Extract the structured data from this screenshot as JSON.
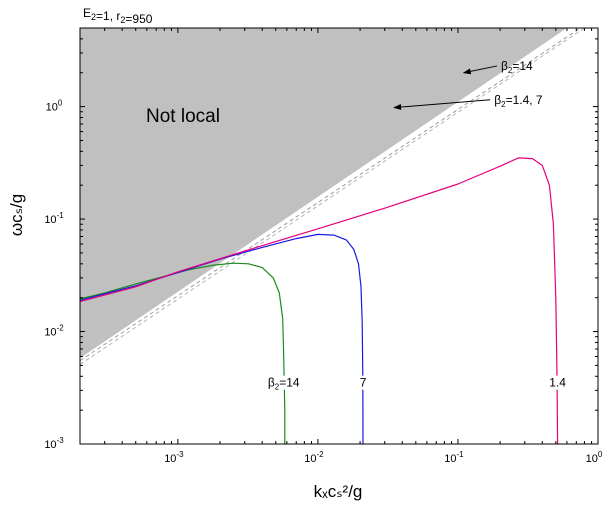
{
  "chart_data": {
    "type": "line",
    "title": "E₂=1, r₂=950",
    "xlabel": "kₓcₛ²/g",
    "ylabel": "ωcₛ/g",
    "xscale": "log",
    "yscale": "log",
    "xlim": [
      0.0002,
      1
    ],
    "ylim": [
      0.001,
      5
    ],
    "x_ticks": [
      {
        "value": 0.001,
        "base": "10",
        "exp": "-3"
      },
      {
        "value": 0.01,
        "base": "10",
        "exp": "-2"
      },
      {
        "value": 0.1,
        "base": "10",
        "exp": "-1"
      },
      {
        "value": 1,
        "base": "10",
        "exp": "0"
      }
    ],
    "y_ticks": [
      {
        "value": 0.001,
        "base": "10",
        "exp": "-3"
      },
      {
        "value": 0.01,
        "base": "10",
        "exp": "-2"
      },
      {
        "value": 0.1,
        "base": "10",
        "exp": "-1"
      },
      {
        "value": 1,
        "base": "10",
        "exp": "0"
      }
    ],
    "shaded_region": {
      "label": "Not local",
      "color": "#c0c0c0",
      "boundary": [
        [
          0.0002,
          0.0058
        ],
        [
          0.6,
          5
        ]
      ]
    },
    "dashed_lines": [
      {
        "name": "β₂=14",
        "color": "#9a9a9a",
        "points": [
          [
            0.0002,
            0.0055
          ],
          [
            0.75,
            5
          ]
        ]
      },
      {
        "name": "β₂=1.4, 7",
        "color": "#b5b5b5",
        "points": [
          [
            0.0002,
            0.0051
          ],
          [
            0.8,
            5
          ]
        ]
      }
    ],
    "series": [
      {
        "name": "β₂=14",
        "color": "#1a8a1a",
        "x": [
          0.0002,
          0.0003,
          0.0005,
          0.0008,
          0.0012,
          0.0018,
          0.0025,
          0.0032,
          0.004,
          0.0048,
          0.0053,
          0.0056,
          0.0057,
          0.0058,
          0.0058
        ],
        "y": [
          0.0195,
          0.022,
          0.0265,
          0.031,
          0.0355,
          0.039,
          0.0405,
          0.04,
          0.037,
          0.03,
          0.022,
          0.013,
          0.006,
          0.002,
          0.001
        ]
      },
      {
        "name": "7",
        "color": "#1a1adc",
        "x": [
          0.0002,
          0.0005,
          0.001,
          0.002,
          0.004,
          0.007,
          0.01,
          0.013,
          0.016,
          0.018,
          0.0195,
          0.0203,
          0.0207,
          0.0209,
          0.021
        ],
        "y": [
          0.019,
          0.0255,
          0.0335,
          0.044,
          0.056,
          0.067,
          0.073,
          0.072,
          0.065,
          0.054,
          0.04,
          0.025,
          0.012,
          0.004,
          0.001
        ]
      },
      {
        "name": "1.4",
        "color": "#e6007e",
        "x": [
          0.0002,
          0.0005,
          0.001,
          0.003,
          0.01,
          0.03,
          0.1,
          0.2,
          0.27,
          0.34,
          0.4,
          0.45,
          0.48,
          0.5,
          0.51,
          0.515
        ],
        "y": [
          0.0185,
          0.025,
          0.034,
          0.052,
          0.082,
          0.125,
          0.205,
          0.295,
          0.35,
          0.345,
          0.3,
          0.2,
          0.09,
          0.02,
          0.004,
          0.001
        ]
      }
    ],
    "annotations": [
      {
        "base": "β",
        "sub": "2",
        "rest": "=14",
        "x": 0.19,
        "y": 2.3,
        "arrow_to": [
          0.11,
          2.0
        ]
      },
      {
        "base": "β",
        "sub": "2",
        "rest": "=1.4, 7",
        "x": 0.17,
        "y": 1.15,
        "arrow_to": [
          0.035,
          0.98
        ]
      }
    ],
    "curve_labels": [
      {
        "base": "β",
        "sub": "2",
        "rest": "=14",
        "x": 0.0057,
        "y": 0.0033
      },
      {
        "base": "",
        "sub": "",
        "rest": "7",
        "x": 0.021,
        "y": 0.0033
      },
      {
        "base": "",
        "sub": "",
        "rest": "1.4",
        "x": 0.515,
        "y": 0.0033
      }
    ]
  }
}
